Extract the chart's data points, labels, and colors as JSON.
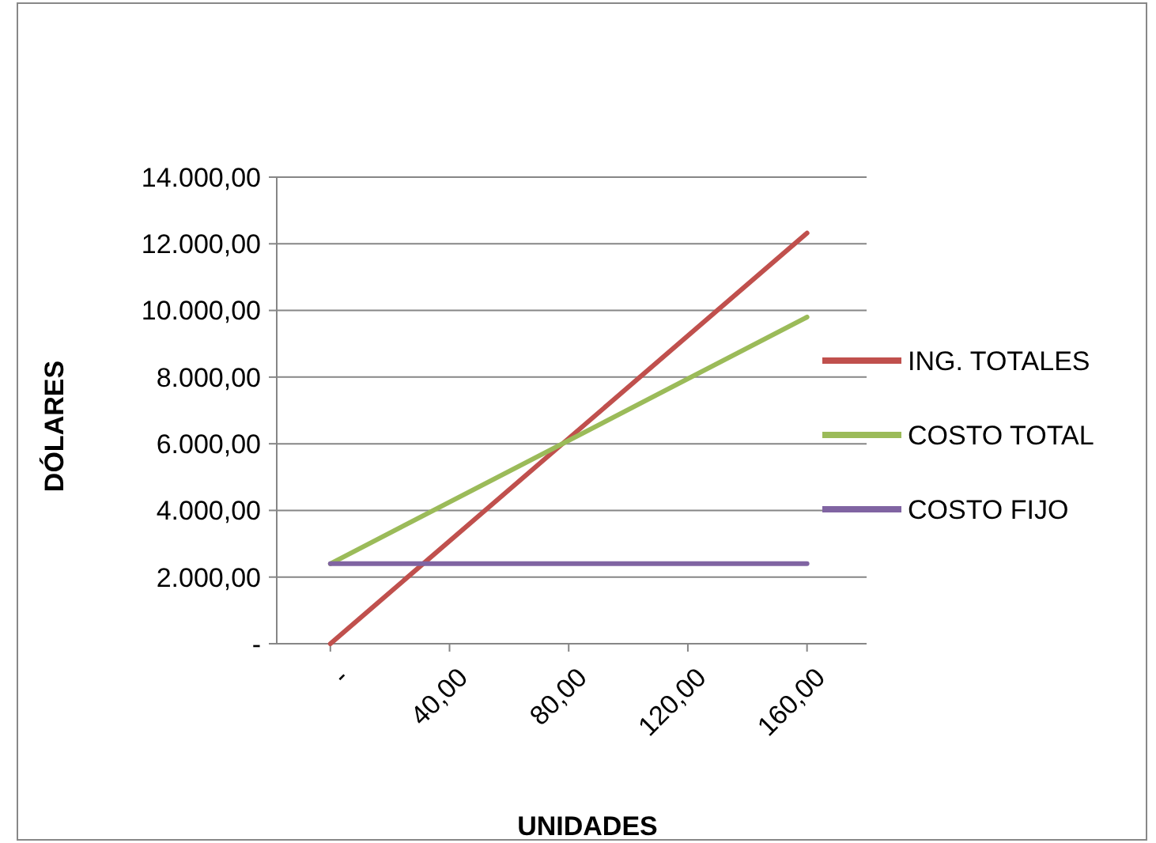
{
  "chart_data": {
    "type": "line",
    "xlabel": "UNIDADES",
    "ylabel": "DÓLARES",
    "x": [
      0,
      160
    ],
    "series": [
      {
        "name": "ING. TOTALES",
        "color": "#c0504d",
        "values": [
          0,
          12320
        ]
      },
      {
        "name": "COSTO TOTAL",
        "color": "#9bbb59",
        "values": [
          2400,
          9800
        ]
      },
      {
        "name": "COSTO FIJO",
        "color": "#8064a2",
        "values": [
          2400,
          2400
        ]
      }
    ],
    "xlim": [
      -18,
      180
    ],
    "xticks": [
      {
        "value": 0,
        "label": "-"
      },
      {
        "value": 40,
        "label": "40,00"
      },
      {
        "value": 80,
        "label": "80,00"
      },
      {
        "value": 120,
        "label": "120,00"
      },
      {
        "value": 160,
        "label": "160,00"
      }
    ],
    "ylim": [
      0,
      14000
    ],
    "yticks": [
      {
        "value": 0,
        "label": "-"
      },
      {
        "value": 2000,
        "label": "2.000,00"
      },
      {
        "value": 4000,
        "label": "4.000,00"
      },
      {
        "value": 6000,
        "label": "6.000,00"
      },
      {
        "value": 8000,
        "label": "8.000,00"
      },
      {
        "value": 10000,
        "label": "10.000,00"
      },
      {
        "value": 12000,
        "label": "12.000,00"
      },
      {
        "value": 14000,
        "label": "14.000,00"
      }
    ],
    "grid": "y",
    "legend": "right",
    "marker": "none",
    "line_style": "solid"
  }
}
